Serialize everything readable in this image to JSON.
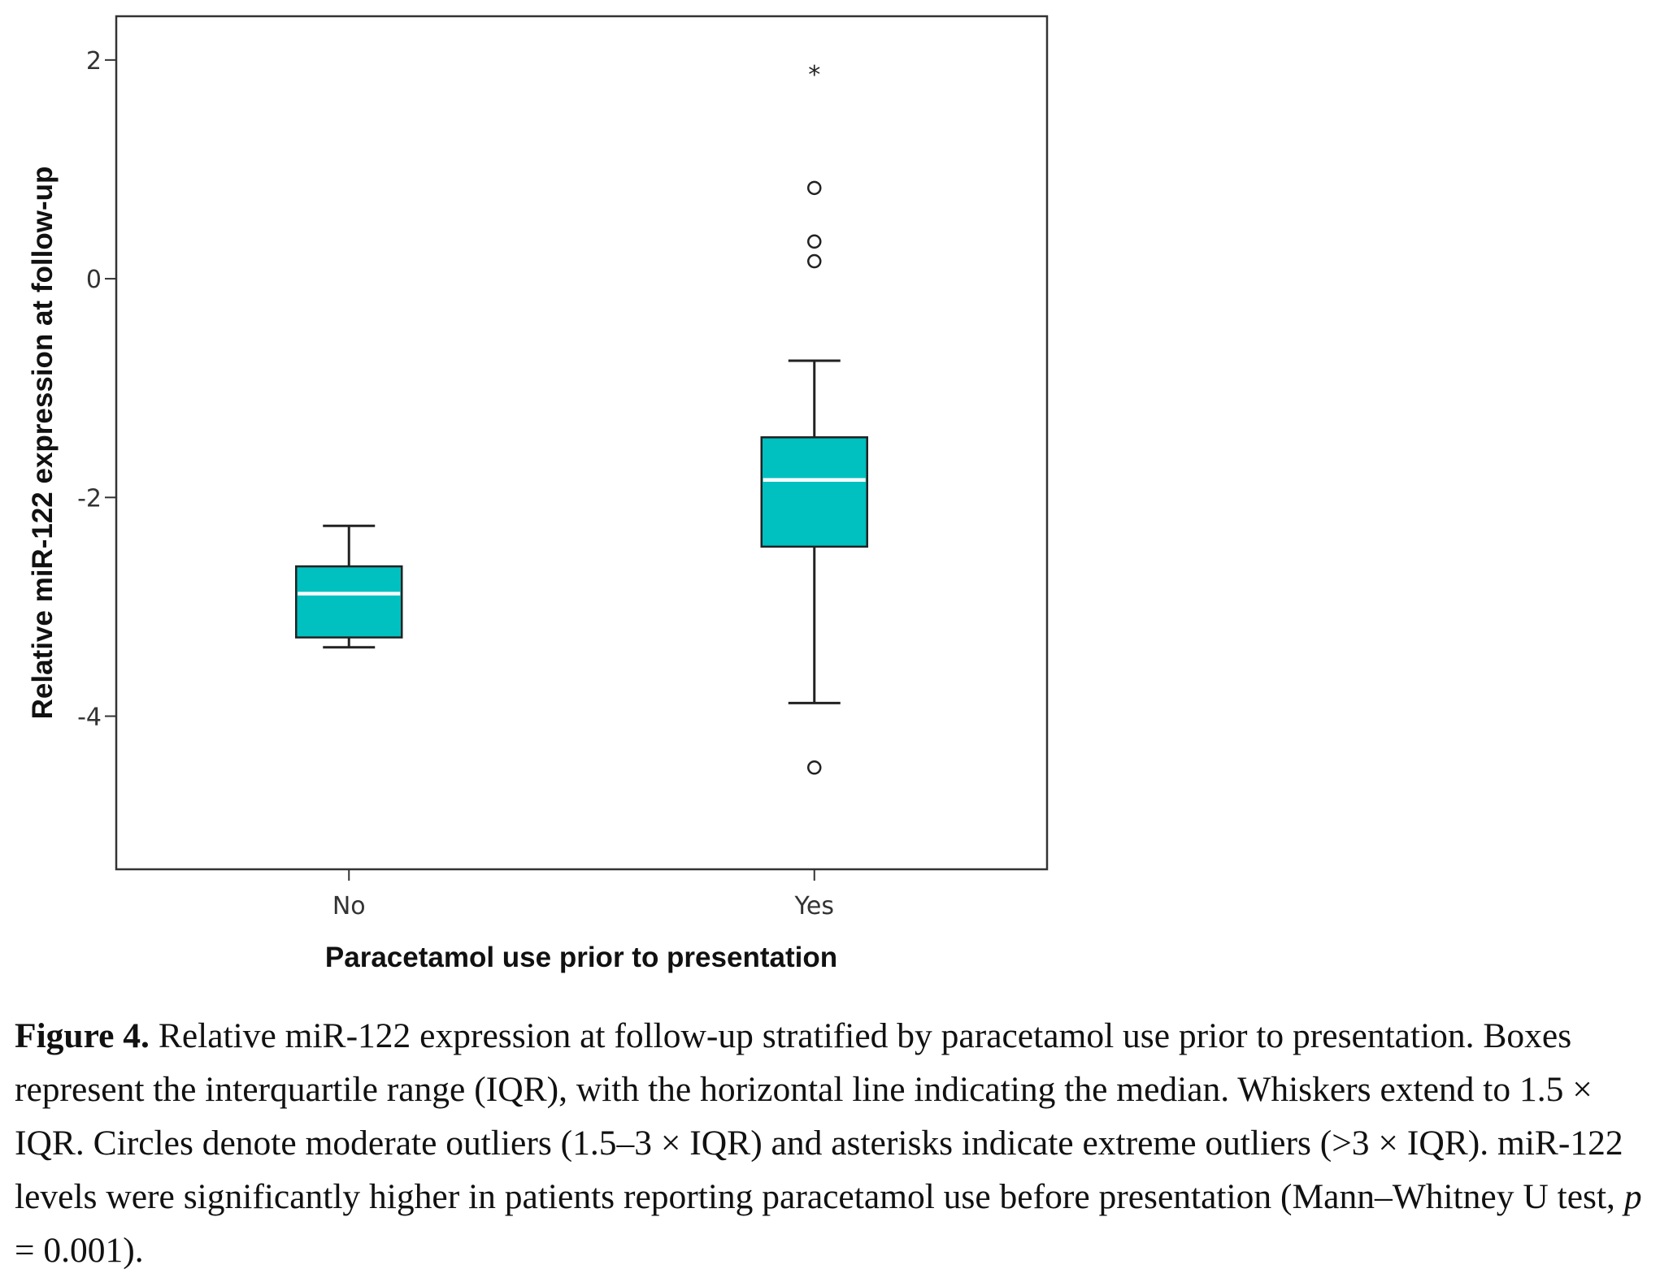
{
  "chart_data": {
    "type": "box",
    "ylabel": "Relative miR-122 expression at follow-up",
    "xlabel": "Paracetamol use prior to presentation",
    "ylim": [
      -5.4,
      2.4
    ],
    "yticks": [
      {
        "value": 2,
        "label": "2"
      },
      {
        "value": 0,
        "label": "0"
      },
      {
        "value": -2,
        "label": "-2"
      },
      {
        "value": -4,
        "label": "-4"
      }
    ],
    "grid": false,
    "box_color": "#00c0c0",
    "median_color": "#ffffff",
    "line_color": "#222222",
    "groups": [
      {
        "category": "No",
        "whisker_low": -3.37,
        "q1": -3.28,
        "median": -2.88,
        "q3": -2.63,
        "whisker_high": -2.26,
        "outliers": [],
        "extremes": []
      },
      {
        "category": "Yes",
        "whisker_low": -3.88,
        "q1": -2.45,
        "median": -1.84,
        "q3": -1.45,
        "whisker_high": -0.75,
        "outliers": [
          -4.47,
          0.16,
          0.34,
          0.83
        ],
        "extremes": [
          1.91
        ]
      }
    ]
  },
  "caption": {
    "label": "Figure 4.",
    "text": "Relative miR-122 expression at follow-up stratified by paracetamol use prior to presentation. Boxes represent the interquartile range (IQR), with the horizontal line indicating the median. Whiskers extend to 1.5 × IQR. Circles denote moderate outliers (1.5–3 × IQR) and asterisks indicate extreme outliers (>3 × IQR). miR-122 levels were significantly higher in patients reporting paracetamol use before presentation (Mann–Whitney U test, ",
    "p_symbol": "p",
    "text_end": " = 0.001)."
  }
}
